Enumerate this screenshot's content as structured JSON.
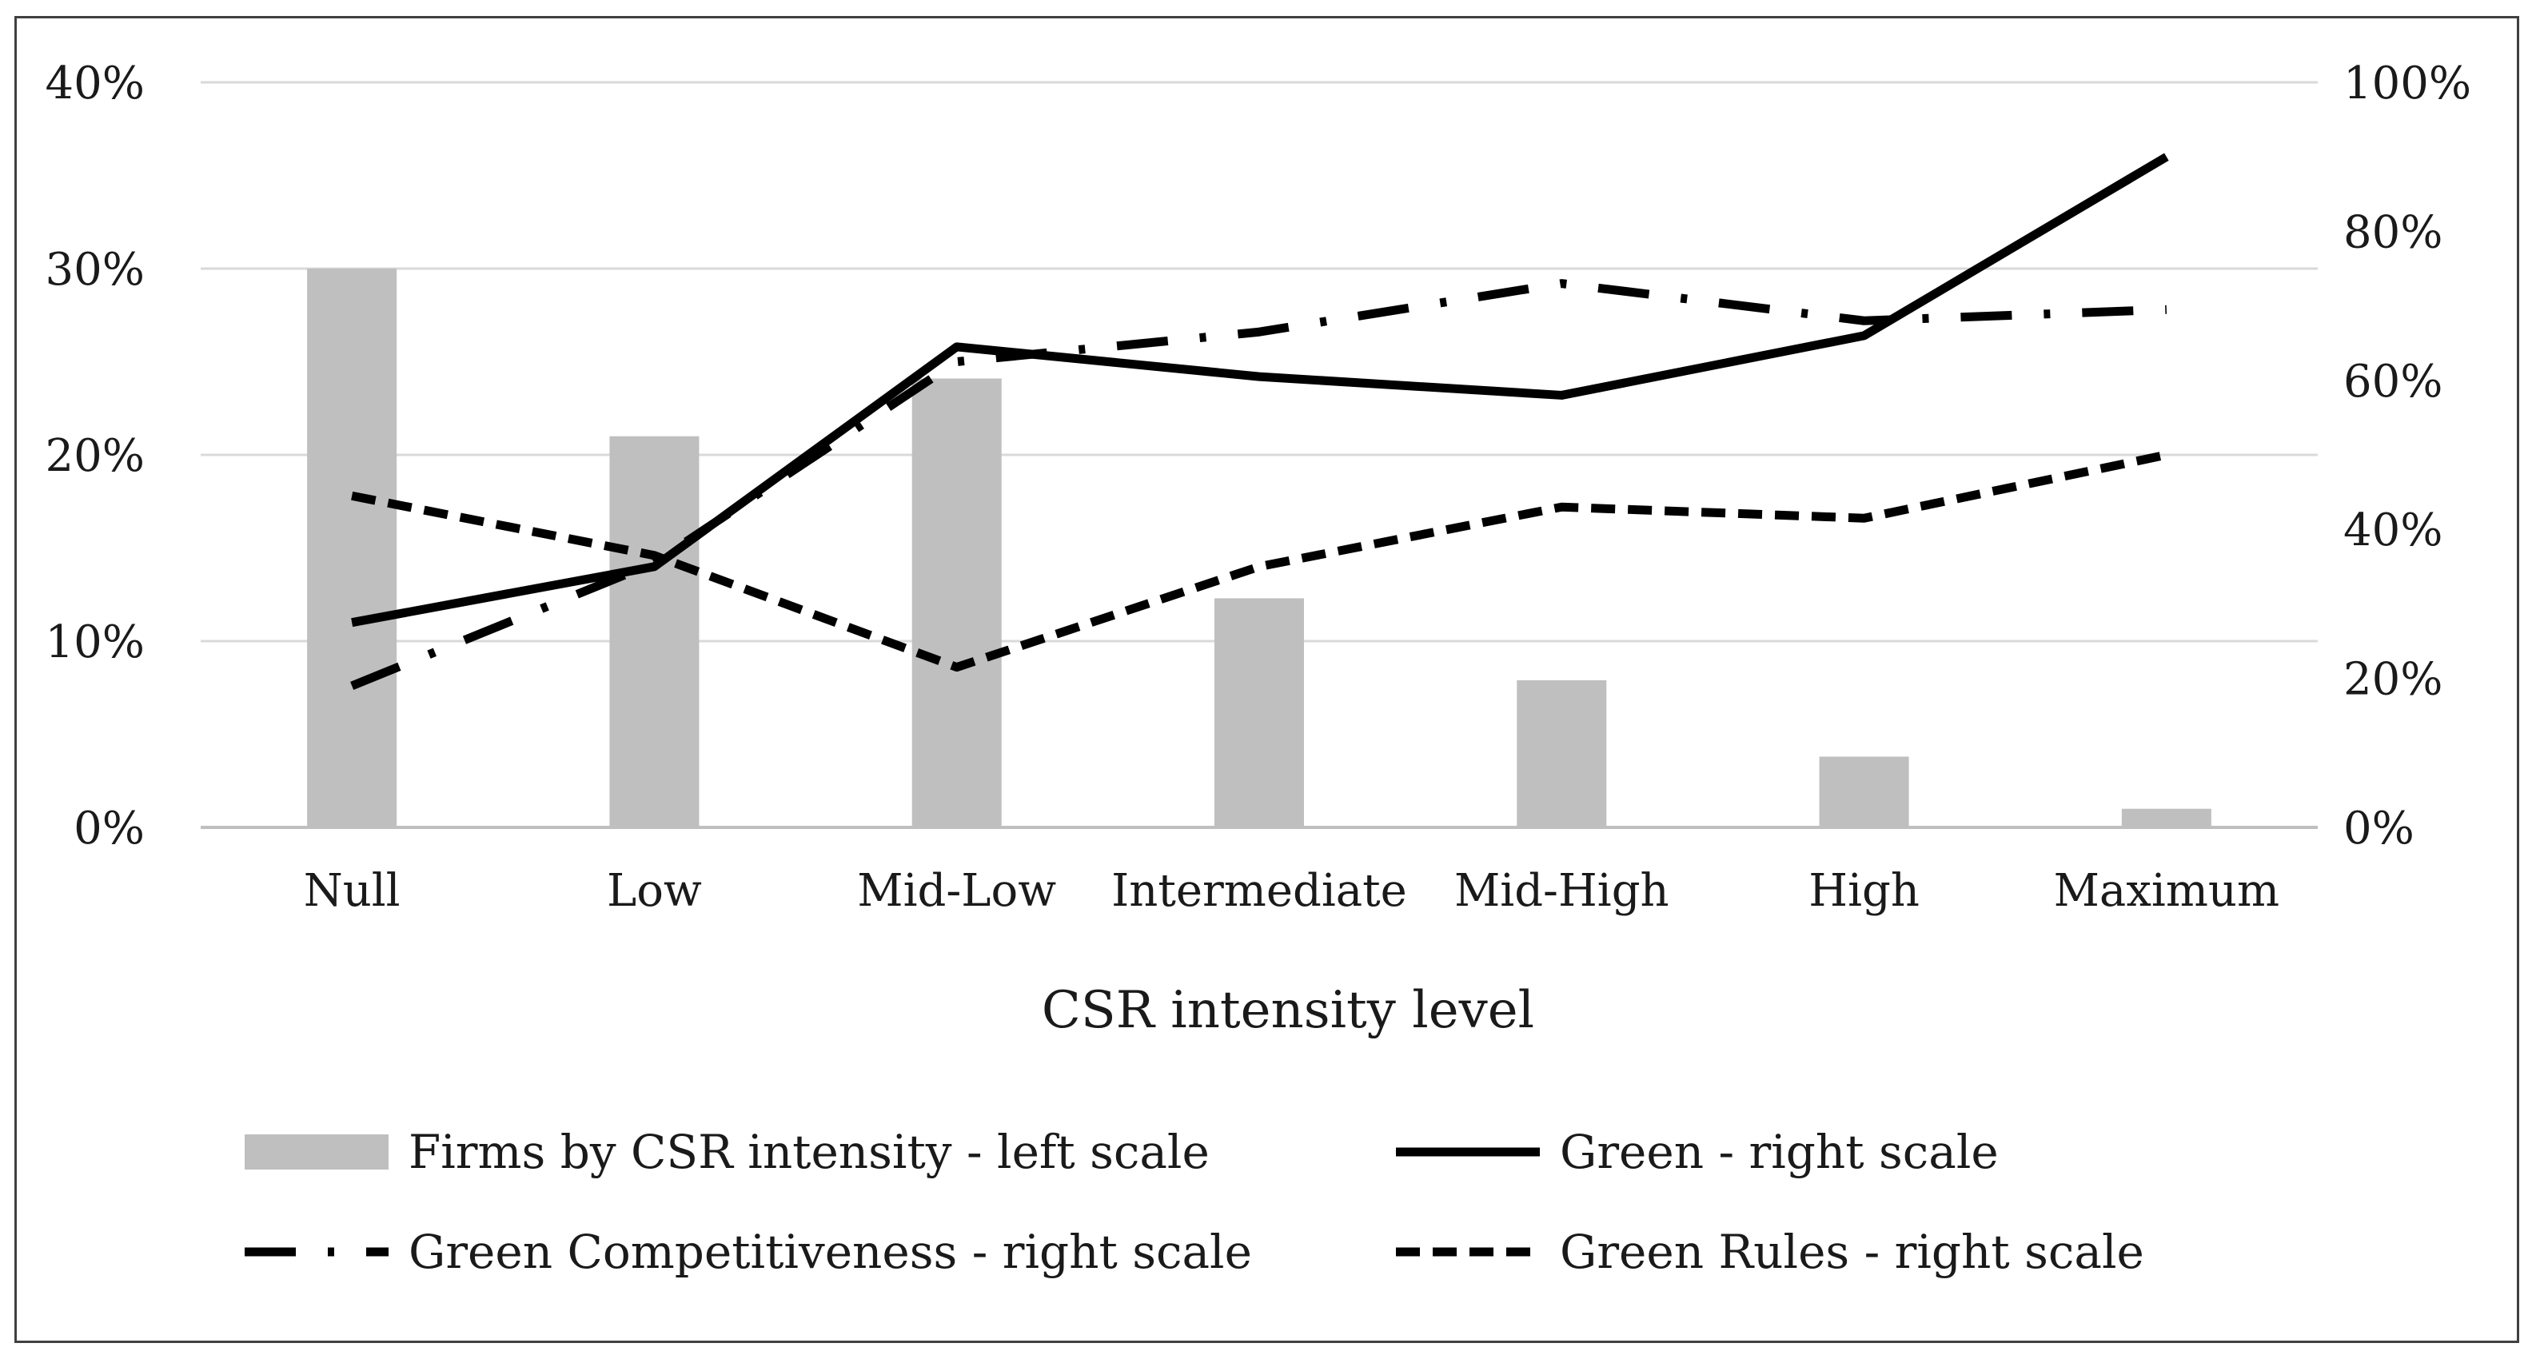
{
  "chart_data": {
    "type": "bar+line",
    "title": "",
    "xlabel": "CSR intensity level",
    "categories": [
      "Null",
      "Low",
      "Mid-Low",
      "Intermediate",
      "Mid-High",
      "High",
      "Maximum"
    ],
    "y_left": {
      "ticks": [
        "0%",
        "10%",
        "20%",
        "30%",
        "40%"
      ],
      "ylim": [
        0,
        40
      ]
    },
    "y_right": {
      "ticks": [
        "0%",
        "20%",
        "40%",
        "60%",
        "80%",
        "100%"
      ],
      "ylim": [
        0,
        100
      ]
    },
    "bars": {
      "name": "Firms by CSR intensity - left scale",
      "axis": "left",
      "color": "#bfbfbf",
      "values": [
        30,
        21,
        24.1,
        12.3,
        7.9,
        3.8,
        1.0
      ]
    },
    "series": [
      {
        "name": "Green - right scale",
        "axis": "right",
        "style": "solid",
        "values": [
          27.5,
          35,
          64.5,
          60.5,
          58,
          66,
          90
        ]
      },
      {
        "name": "Green Competitiveness - right scale",
        "axis": "right",
        "style": "dash-dot",
        "values": [
          19,
          35.5,
          62.5,
          66.5,
          73,
          68,
          69.5
        ]
      },
      {
        "name": "Green Rules - right scale",
        "axis": "right",
        "style": "dashed",
        "values": [
          44.5,
          36.5,
          21.5,
          35,
          43,
          41.5,
          50
        ]
      }
    ],
    "legend": {
      "position": "bottom"
    }
  }
}
